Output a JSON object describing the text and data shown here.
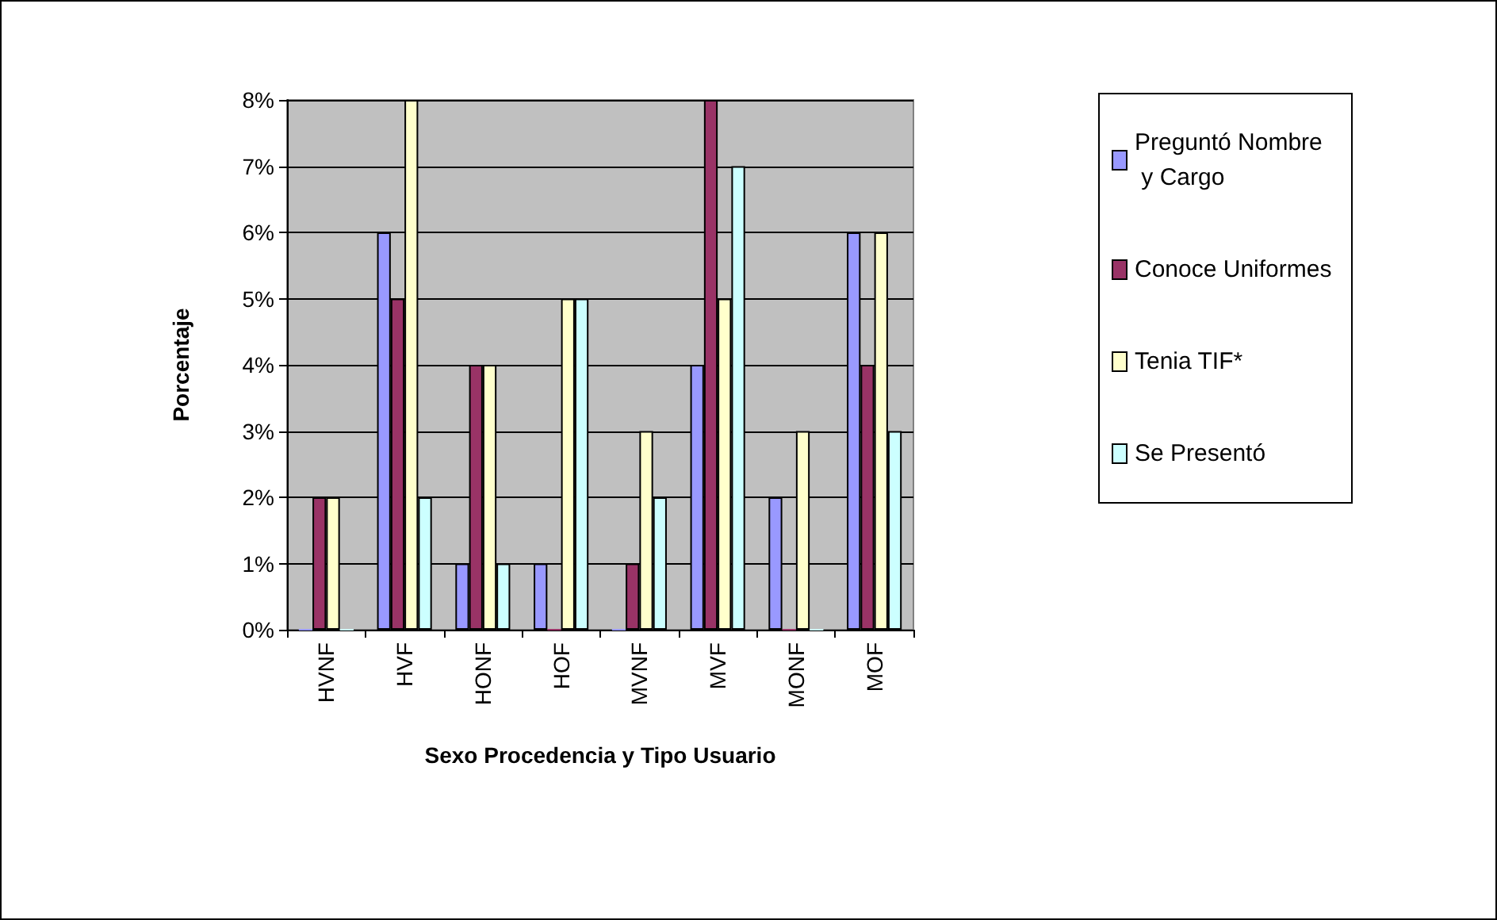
{
  "chart_data": {
    "type": "bar",
    "xlabel": "Sexo Procedencia y Tipo Usuario",
    "ylabel": "Porcentaje",
    "categories": [
      "HVNF",
      "HVF",
      "HONF",
      "HOF",
      "MVNF",
      "MVF",
      "MONF",
      "MOF"
    ],
    "series": [
      {
        "name": "Preguntó Nombre y Cargo",
        "color": "#9999ff",
        "values": [
          0,
          6,
          1,
          1,
          0,
          4,
          2,
          6
        ]
      },
      {
        "name": "Conoce Uniformes",
        "color": "#993366",
        "values": [
          2,
          5,
          4,
          0,
          1,
          8,
          0,
          4
        ]
      },
      {
        "name": "Tenia TIF*",
        "color": "#ffffcc",
        "values": [
          2,
          8,
          4,
          5,
          3,
          5,
          3,
          6
        ]
      },
      {
        "name": "Se Presentó",
        "color": "#ccffff",
        "values": [
          0,
          2,
          1,
          5,
          2,
          7,
          0,
          3
        ]
      }
    ],
    "ylim": [
      0,
      8
    ],
    "yticks": [
      {
        "value": 0,
        "label": "0%"
      },
      {
        "value": 1,
        "label": "1%"
      },
      {
        "value": 2,
        "label": "2%"
      },
      {
        "value": 3,
        "label": "3%"
      },
      {
        "value": 4,
        "label": "4%"
      },
      {
        "value": 5,
        "label": "5%"
      },
      {
        "value": 6,
        "label": "6%"
      },
      {
        "value": 7,
        "label": "7%"
      },
      {
        "value": 8,
        "label": "8%"
      }
    ],
    "grid": "y",
    "legend": "right"
  }
}
